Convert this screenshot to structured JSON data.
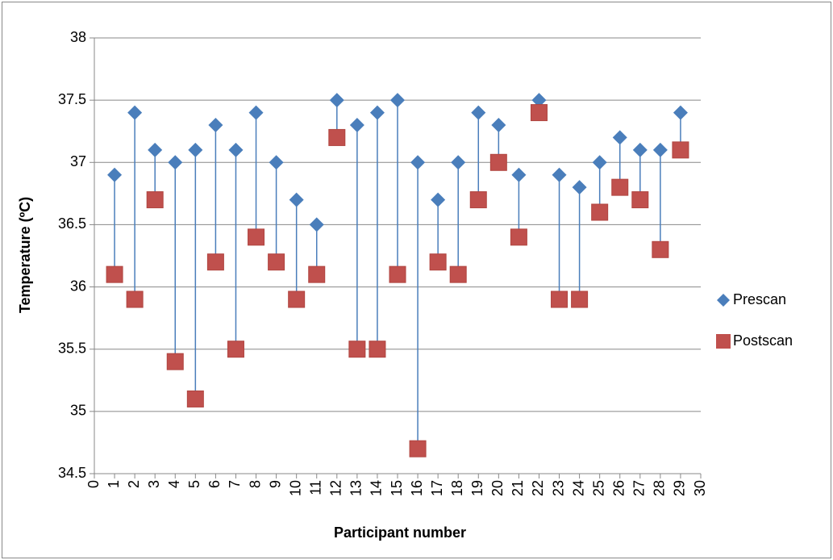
{
  "chart_data": {
    "type": "scatter",
    "x_label": "Participant number",
    "y_label": "Temperature (ºC)",
    "x": [
      1,
      2,
      3,
      4,
      5,
      6,
      7,
      8,
      9,
      10,
      11,
      12,
      13,
      14,
      15,
      16,
      17,
      18,
      19,
      20,
      21,
      22,
      23,
      24,
      25,
      26,
      27,
      28,
      29
    ],
    "series": [
      {
        "name": "Prescan",
        "color": "#4a7ebb",
        "marker": "diamond",
        "values": [
          36.9,
          37.4,
          37.1,
          37.0,
          37.1,
          37.3,
          37.1,
          37.4,
          37.0,
          36.7,
          36.5,
          37.5,
          37.3,
          37.4,
          37.5,
          37.0,
          36.7,
          37.0,
          37.4,
          37.3,
          36.9,
          37.5,
          36.9,
          36.8,
          37.0,
          37.2,
          37.1,
          37.1,
          37.4
        ]
      },
      {
        "name": "Postscan",
        "color": "#c0504d",
        "marker": "square",
        "values": [
          36.1,
          35.9,
          36.7,
          35.4,
          35.1,
          36.2,
          35.5,
          36.4,
          36.2,
          35.9,
          36.1,
          37.2,
          35.5,
          35.5,
          36.1,
          34.7,
          36.2,
          36.1,
          36.7,
          37.0,
          36.4,
          37.4,
          35.9,
          35.9,
          36.6,
          36.8,
          36.7,
          36.3,
          37.1
        ]
      }
    ],
    "drop_lines": true,
    "drop_line_color": "#4a7ebb",
    "xlim": [
      0,
      30
    ],
    "xticks": [
      0,
      1,
      2,
      3,
      4,
      5,
      6,
      7,
      8,
      9,
      10,
      11,
      12,
      13,
      14,
      15,
      16,
      17,
      18,
      19,
      20,
      21,
      22,
      23,
      24,
      25,
      26,
      27,
      28,
      29,
      30
    ],
    "ylim": [
      34.5,
      38
    ],
    "yticks": [
      34.5,
      35,
      35.5,
      36,
      36.5,
      37,
      37.5,
      38
    ],
    "grid": true,
    "legend": "right"
  }
}
